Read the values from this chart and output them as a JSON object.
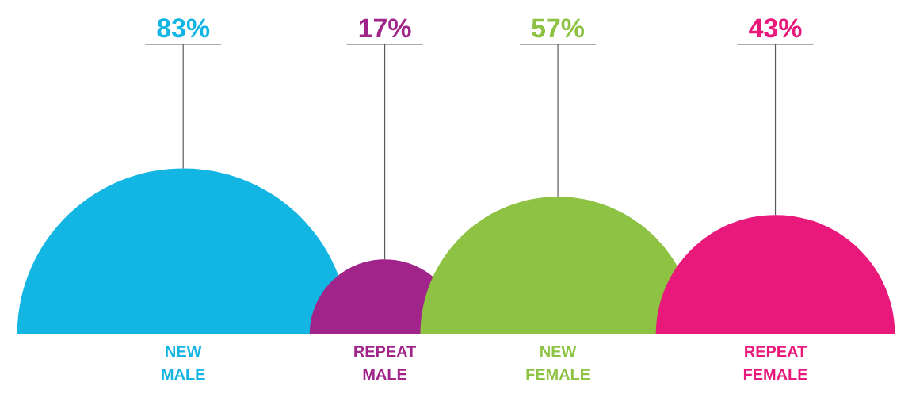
{
  "chart_data": {
    "type": "other",
    "categories": [
      "NEW MALE",
      "REPEAT MALE",
      "NEW FEMALE",
      "REPEAT FEMALE"
    ],
    "values": [
      83,
      17,
      57,
      43
    ],
    "value_labels": [
      "83%",
      "17%",
      "57%",
      "43%"
    ],
    "colors": [
      "#13b5e2",
      "#a0248a",
      "#8dc242",
      "#e8197b"
    ]
  }
}
